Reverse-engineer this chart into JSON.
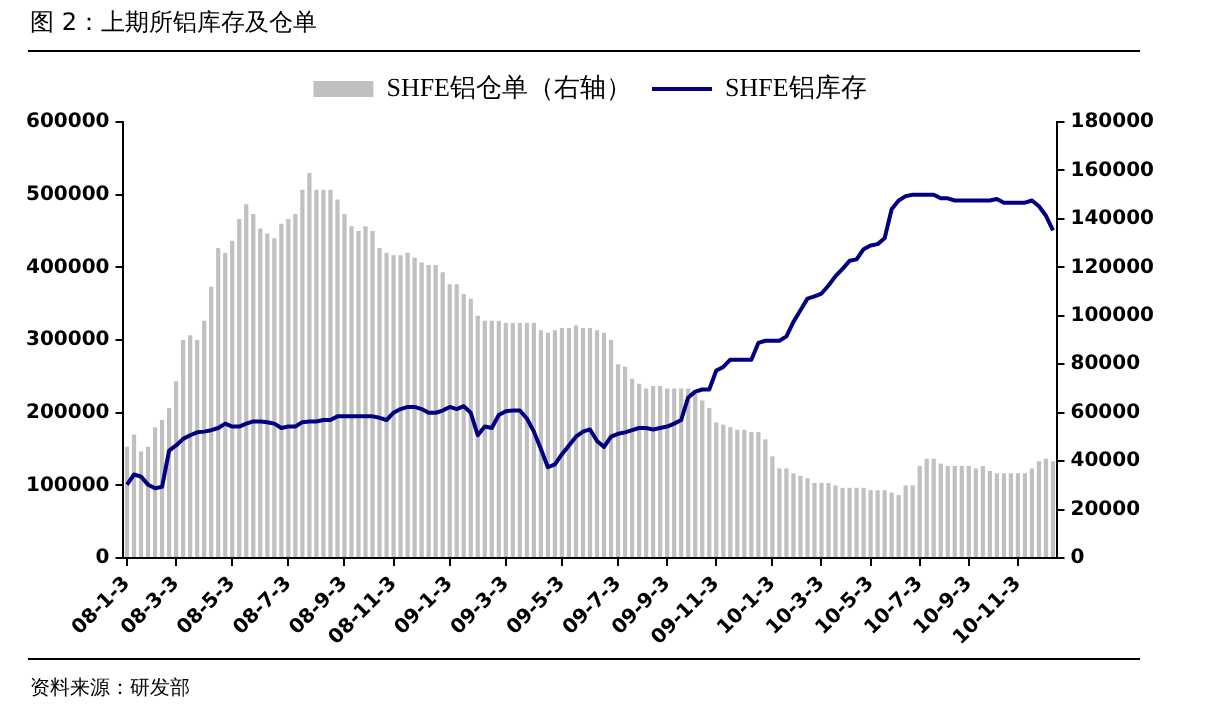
{
  "chart_data": {
    "type": "bar",
    "title": "图 2：上期所铝库存及仓单",
    "annotations": [
      "资料来源：研发部"
    ],
    "categories": [
      "08-1-3",
      null,
      null,
      null,
      null,
      null,
      null,
      "08-3-3",
      null,
      null,
      null,
      null,
      null,
      null,
      null,
      "08-5-3",
      null,
      null,
      null,
      null,
      null,
      null,
      null,
      "08-7-3",
      null,
      null,
      null,
      null,
      null,
      null,
      null,
      "08-9-3",
      null,
      null,
      null,
      null,
      null,
      null,
      "08-11-3",
      null,
      null,
      null,
      null,
      null,
      null,
      null,
      "09-1-3",
      null,
      null,
      null,
      null,
      null,
      null,
      null,
      "09-3-3",
      null,
      null,
      null,
      null,
      null,
      null,
      null,
      "09-5-3",
      null,
      null,
      null,
      null,
      null,
      null,
      null,
      "09-7-3",
      null,
      null,
      null,
      null,
      null,
      null,
      "09-9-3",
      null,
      null,
      null,
      null,
      null,
      null,
      "09-11-3",
      null,
      null,
      null,
      null,
      null,
      null,
      null,
      "10-1-3",
      null,
      null,
      null,
      null,
      null,
      null,
      "10-3-3",
      null,
      null,
      null,
      null,
      null,
      null,
      "10-5-3",
      null,
      null,
      null,
      null,
      null,
      null,
      "10-7-3",
      null,
      null,
      null,
      null,
      null,
      null,
      "10-9-3",
      null,
      null,
      null,
      null,
      null,
      null,
      "10-11-3",
      null,
      null,
      null,
      null,
      null
    ],
    "series": [
      {
        "name": "SHFE铝仓单（右轴）",
        "axis": "y2",
        "color": "#c0c0c0",
        "values": [
          46000,
          51000,
          44000,
          46000,
          54000,
          57000,
          62000,
          73000,
          90000,
          92000,
          90000,
          98000,
          112000,
          128000,
          126000,
          131000,
          140000,
          146000,
          142000,
          136000,
          134000,
          132000,
          138000,
          140000,
          142000,
          152000,
          159000,
          152000,
          152000,
          152000,
          148000,
          142000,
          137000,
          135000,
          137000,
          135000,
          128000,
          126000,
          125000,
          125000,
          126000,
          124000,
          122000,
          121000,
          121000,
          118000,
          113000,
          113000,
          109000,
          107000,
          100000,
          98000,
          98000,
          98000,
          97000,
          97000,
          97000,
          97000,
          97000,
          94000,
          93000,
          94000,
          95000,
          95000,
          96000,
          95000,
          95000,
          94000,
          93000,
          90000,
          80000,
          79000,
          74000,
          72000,
          70000,
          71000,
          71000,
          70000,
          70000,
          70000,
          70000,
          68000,
          65000,
          62000,
          56000,
          55000,
          54000,
          53000,
          53000,
          52000,
          52000,
          49000,
          42000,
          37000,
          37000,
          35000,
          34000,
          33000,
          31000,
          31000,
          31000,
          30000,
          29000,
          29000,
          29000,
          29000,
          28000,
          28000,
          28000,
          27000,
          26000,
          30000,
          30000,
          38000,
          41000,
          41000,
          39000,
          38000,
          38000,
          38000,
          38000,
          37000,
          38000,
          36000,
          35000,
          35000,
          35000,
          35000,
          35000,
          37000,
          40000,
          41000,
          40000
        ]
      },
      {
        "name": "SHFE铝库存",
        "type": "line",
        "color": "#000080",
        "values": [
          101000,
          115000,
          112000,
          101000,
          96000,
          98000,
          148000,
          155000,
          164000,
          169000,
          173000,
          174000,
          176000,
          179000,
          185000,
          181000,
          181000,
          185000,
          188000,
          188000,
          187000,
          185000,
          179000,
          181000,
          181000,
          187000,
          188000,
          188000,
          190000,
          190000,
          195000,
          195000,
          195000,
          195000,
          195000,
          195000,
          193000,
          190000,
          200000,
          205000,
          208000,
          208000,
          205000,
          200000,
          200000,
          203000,
          208000,
          205000,
          209000,
          200000,
          169000,
          181000,
          179000,
          197000,
          202000,
          203000,
          203000,
          192000,
          174000,
          150000,
          125000,
          129000,
          143000,
          155000,
          167000,
          174000,
          177000,
          161000,
          153000,
          167000,
          171000,
          173000,
          176000,
          179000,
          179000,
          177000,
          179000,
          181000,
          185000,
          190000,
          221000,
          229000,
          232000,
          232000,
          258000,
          263000,
          273000,
          273000,
          273000,
          273000,
          296000,
          299000,
          299000,
          299000,
          305000,
          325000,
          341000,
          357000,
          360000,
          364000,
          375000,
          388000,
          398000,
          409000,
          411000,
          425000,
          430000,
          432000,
          440000,
          480000,
          492000,
          498000,
          500000,
          500000,
          500000,
          500000,
          495000,
          495000,
          492000,
          492000,
          492000,
          492000,
          492000,
          492000,
          494000,
          489000,
          489000,
          489000,
          489000,
          492000,
          484000,
          471000,
          451000
        ]
      }
    ],
    "ylim": [
      0,
      600000
    ],
    "yticks": [
      0,
      100000,
      200000,
      300000,
      400000,
      500000,
      600000
    ],
    "y2lim": [
      0,
      180000
    ],
    "y2ticks": [
      0,
      20000,
      40000,
      60000,
      80000,
      100000,
      120000,
      140000,
      160000,
      180000
    ],
    "grid": false,
    "legend": "top",
    "marker": "none",
    "line_style": "solid"
  }
}
